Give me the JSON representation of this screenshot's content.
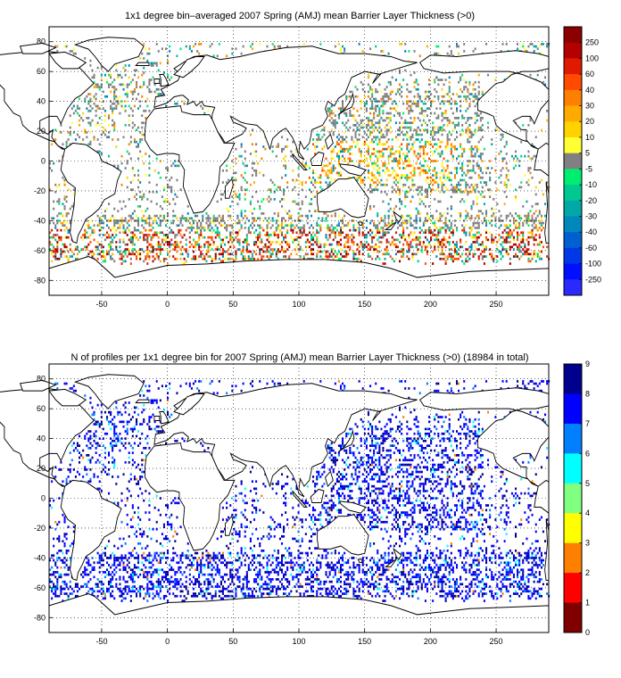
{
  "panels": [
    {
      "title": "1x1 degree bin–averaged 2007 Spring (AMJ) mean Barrier Layer Thickness (>0)",
      "x_ticks": [
        "-50",
        "0",
        "50",
        "100",
        "150",
        "200",
        "250"
      ],
      "y_ticks": [
        "80",
        "60",
        "40",
        "20",
        "0",
        "-20",
        "-40",
        "-60",
        "-80"
      ],
      "colorbar": {
        "labels": [
          "250",
          "100",
          "60",
          "40",
          "30",
          "20",
          "10",
          "5",
          "-5",
          "-10",
          "-20",
          "-30",
          "-40",
          "-60",
          "-100",
          "-250"
        ],
        "colors": [
          "#8b0000",
          "#b30000",
          "#e01a00",
          "#ff4a00",
          "#ff8000",
          "#ffaa00",
          "#ffd200",
          "#ffff33",
          "#808080",
          "#00ee70",
          "#00c890",
          "#00a8a8",
          "#0088bb",
          "#0060d0",
          "#0038e8",
          "#0010ff",
          "#2a2aff"
        ]
      }
    },
    {
      "title": "N of profiles per 1x1 degree bin for 2007 Spring (AMJ) mean Barrier Layer Thickness (>0) (18984 in total)",
      "x_ticks": [
        "-50",
        "0",
        "50",
        "100",
        "150",
        "200",
        "250"
      ],
      "y_ticks": [
        "80",
        "60",
        "40",
        "20",
        "0",
        "-20",
        "-40",
        "-60",
        "-80"
      ],
      "colorbar": {
        "labels": [
          "9",
          "8",
          "7",
          "6",
          "5",
          "4",
          "3",
          "2",
          "1",
          "0"
        ],
        "colors": [
          "#00008f",
          "#0000ff",
          "#0080ff",
          "#00ffff",
          "#80ff80",
          "#ffff00",
          "#ff8000",
          "#ff0000",
          "#800000"
        ]
      }
    }
  ]
}
